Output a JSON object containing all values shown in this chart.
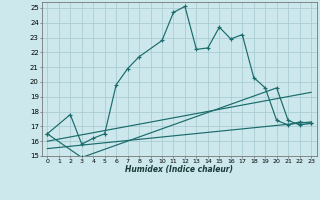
{
  "xlabel": "Humidex (Indice chaleur)",
  "bg_color": "#cce8ec",
  "grid_color": "#aacdd4",
  "line_color": "#1a6b6b",
  "xlim": [
    -0.5,
    23.5
  ],
  "ylim": [
    15,
    25.4
  ],
  "xticks": [
    0,
    1,
    2,
    3,
    4,
    5,
    6,
    7,
    8,
    9,
    10,
    11,
    12,
    13,
    14,
    15,
    16,
    17,
    18,
    19,
    20,
    21,
    22,
    23
  ],
  "yticks": [
    15,
    16,
    17,
    18,
    19,
    20,
    21,
    22,
    23,
    24,
    25
  ],
  "series1_x": [
    0,
    2,
    3,
    4,
    5,
    6,
    7,
    8,
    10,
    11,
    12,
    13,
    14,
    15,
    16,
    17,
    18,
    19,
    20,
    21,
    22,
    23
  ],
  "series1_y": [
    16.5,
    17.8,
    15.8,
    16.2,
    16.5,
    19.8,
    20.9,
    21.7,
    22.8,
    24.7,
    25.1,
    22.2,
    22.3,
    23.7,
    22.9,
    23.2,
    20.3,
    19.6,
    17.4,
    17.1,
    17.3,
    17.2
  ],
  "series2_x": [
    0,
    3,
    20,
    21,
    22,
    23
  ],
  "series2_y": [
    16.5,
    14.9,
    19.6,
    17.4,
    17.1,
    17.2
  ],
  "series3_x": [
    0,
    23
  ],
  "series3_y": [
    16.0,
    19.3
  ],
  "series4_x": [
    0,
    23
  ],
  "series4_y": [
    15.5,
    17.3
  ]
}
